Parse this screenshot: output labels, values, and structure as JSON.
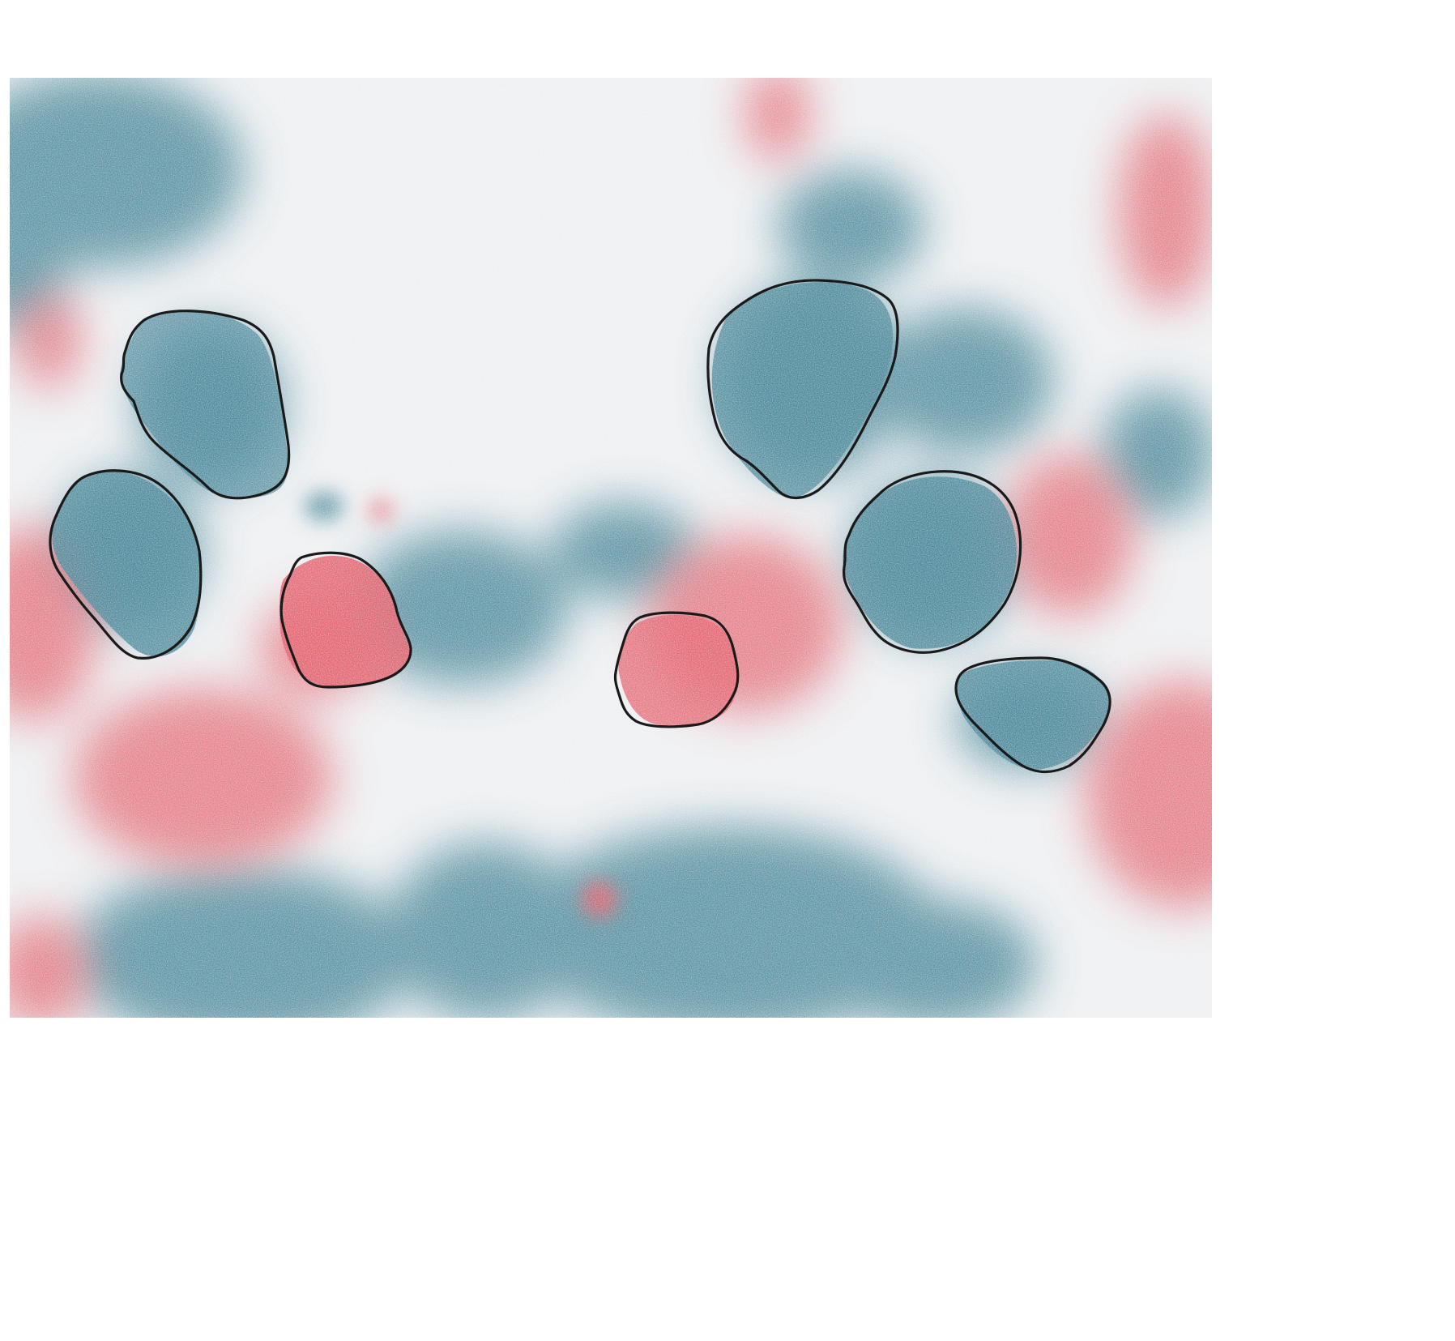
{
  "figure": {
    "background": "#ffffff",
    "colormap": {
      "negative": "#4a8799",
      "neutral": "#eef0f2",
      "positive": "#e2606c"
    },
    "cell_outline_color": "#1a1a1a",
    "cells": [
      {
        "id": "cell-1",
        "label": ""
      },
      {
        "id": "cell-2",
        "label": ""
      },
      {
        "id": "cell-3",
        "label": ""
      },
      {
        "id": "cell-4",
        "label": ""
      },
      {
        "id": "cell-5",
        "label": ""
      },
      {
        "id": "cell-6",
        "label": ""
      },
      {
        "id": "cell-7",
        "label": ""
      },
      {
        "id": "cell-8",
        "label": ""
      }
    ]
  }
}
